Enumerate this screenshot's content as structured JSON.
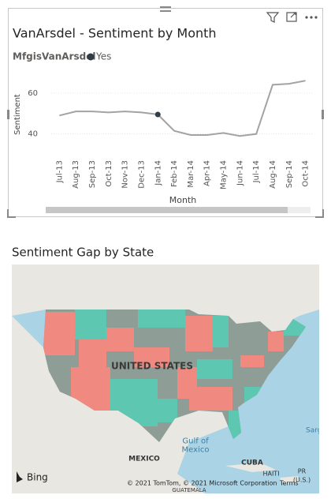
{
  "chart_data": {
    "type": "line",
    "title": "VanArsdel - Sentiment by Month",
    "legend_title": "MfgisVanArsdel",
    "x_label": "Month",
    "y_label": "Sentiment",
    "categories": [
      "Jul-13",
      "Aug-13",
      "Sep-13",
      "Oct-13",
      "Nov-13",
      "Dec-13",
      "Jan-14",
      "Feb-14",
      "Mar-14",
      "Apr-14",
      "May-14",
      "Jun-14",
      "Jul-14",
      "Aug-14",
      "Sep-14",
      "Oct-14"
    ],
    "series": [
      {
        "name": "Yes",
        "color": "#2f3e46",
        "line_color": "#a3a3a3",
        "values": [
          49,
          51,
          51,
          50.5,
          51,
          50.5,
          49.5,
          41.5,
          39.5,
          39.5,
          40.5,
          39,
          40,
          64,
          64.5,
          66
        ]
      }
    ],
    "selected_index": 6,
    "ylim": [
      31,
      68
    ],
    "yticks": [
      40,
      60
    ]
  },
  "map": {
    "title": "Sentiment Gap by State",
    "labels": {
      "country": "UNITED STATES",
      "gulf": "Gulf of\nMexico",
      "mexico": "MEXICO",
      "cuba": "CUBA",
      "haiti": "HAITI",
      "pr": "PR\n(U.S.)",
      "guatemala": "GUATEMALA",
      "sargasso": "Sarg"
    },
    "bing": "Bing",
    "copyright": "© 2021 TomTom, © 2021 Microsoft Corporation",
    "terms": "Terms"
  }
}
